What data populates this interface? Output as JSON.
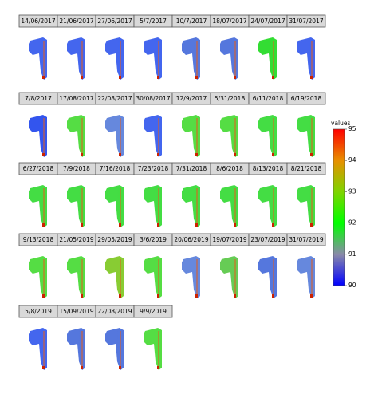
{
  "chart_data": {
    "type": "raster-facets",
    "panels": [
      {
        "label": "14/06/2017",
        "color": "#4466ee"
      },
      {
        "label": "21/06/2017",
        "color": "#4466ee"
      },
      {
        "label": "27/06/2017",
        "color": "#4466ee"
      },
      {
        "label": "5/7/2017",
        "color": "#4466ee"
      },
      {
        "label": "10/7/2017",
        "color": "#5577dd"
      },
      {
        "label": "18/07/2017",
        "color": "#5577dd"
      },
      {
        "label": "24/07/2017",
        "color": "#33dd33"
      },
      {
        "label": "31/07/2017",
        "color": "#4466ee"
      },
      {
        "label": "7/8/2017",
        "color": "#3355ee"
      },
      {
        "label": "17/08/2017",
        "color": "#55dd44"
      },
      {
        "label": "22/08/2017",
        "color": "#6688dd"
      },
      {
        "label": "30/08/2017",
        "color": "#4466ee"
      },
      {
        "label": "12/9/2017",
        "color": "#55dd44"
      },
      {
        "label": "5/31/2018",
        "color": "#55dd44"
      },
      {
        "label": "6/11/2018",
        "color": "#44dd44"
      },
      {
        "label": "6/19/2018",
        "color": "#44dd44"
      },
      {
        "label": "6/27/2018",
        "color": "#44dd44"
      },
      {
        "label": "7/9/2018",
        "color": "#44dd44"
      },
      {
        "label": "7/16/2018",
        "color": "#44dd44"
      },
      {
        "label": "7/23/2018",
        "color": "#44dd44"
      },
      {
        "label": "7/31/2018",
        "color": "#44dd44"
      },
      {
        "label": "8/6/2018",
        "color": "#44dd44"
      },
      {
        "label": "8/13/2018",
        "color": "#44dd44"
      },
      {
        "label": "8/21/2018",
        "color": "#44dd44"
      },
      {
        "label": "9/13/2018",
        "color": "#55dd44"
      },
      {
        "label": "21/05/2019",
        "color": "#55dd44"
      },
      {
        "label": "29/05/2019",
        "color": "#88cc33"
      },
      {
        "label": "3/6/2019",
        "color": "#55dd44"
      },
      {
        "label": "20/06/2019",
        "color": "#6688dd"
      },
      {
        "label": "19/07/2019",
        "color": "#66cc55"
      },
      {
        "label": "23/07/2019",
        "color": "#5577dd"
      },
      {
        "label": "31/07/2019",
        "color": "#6688dd"
      },
      {
        "label": "5/8/2019",
        "color": "#4466ee"
      },
      {
        "label": "15/09/2019",
        "color": "#5577dd"
      },
      {
        "label": "22/08/2019",
        "color": "#5577dd"
      },
      {
        "label": "9/9/2019",
        "color": "#55dd44"
      }
    ],
    "colorbar": {
      "title": "values",
      "lim": [
        90,
        95
      ],
      "ticks": [
        90,
        91,
        92,
        93,
        94,
        95
      ],
      "colors": [
        "#0000ff",
        "#8a8aa8",
        "#00ff00",
        "#7fd400",
        "#e89000",
        "#ff0000"
      ]
    }
  }
}
